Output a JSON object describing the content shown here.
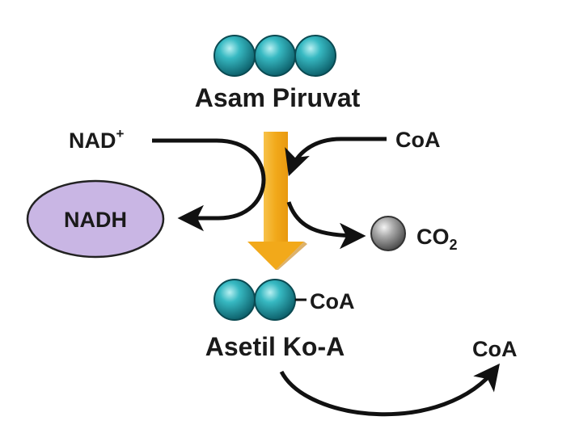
{
  "molecules": {
    "pyruvate": "Asam Piruvat",
    "acetyl_coa": "Asetil Ko-A"
  },
  "cofactors": {
    "nad_plus": "NAD",
    "nad_plus_sup": "+",
    "nadh": "NADH",
    "coa_in": "CoA",
    "coa_attached": "CoA",
    "coa_out": "CoA",
    "co2": "CO",
    "co2_sub": "2"
  },
  "colors": {
    "carbon_ball": "#1e9ea8",
    "main_arrow": "#f4b11e",
    "nadh_oval": "#c9b6e4",
    "co2_ball": "#9a9a9a"
  }
}
